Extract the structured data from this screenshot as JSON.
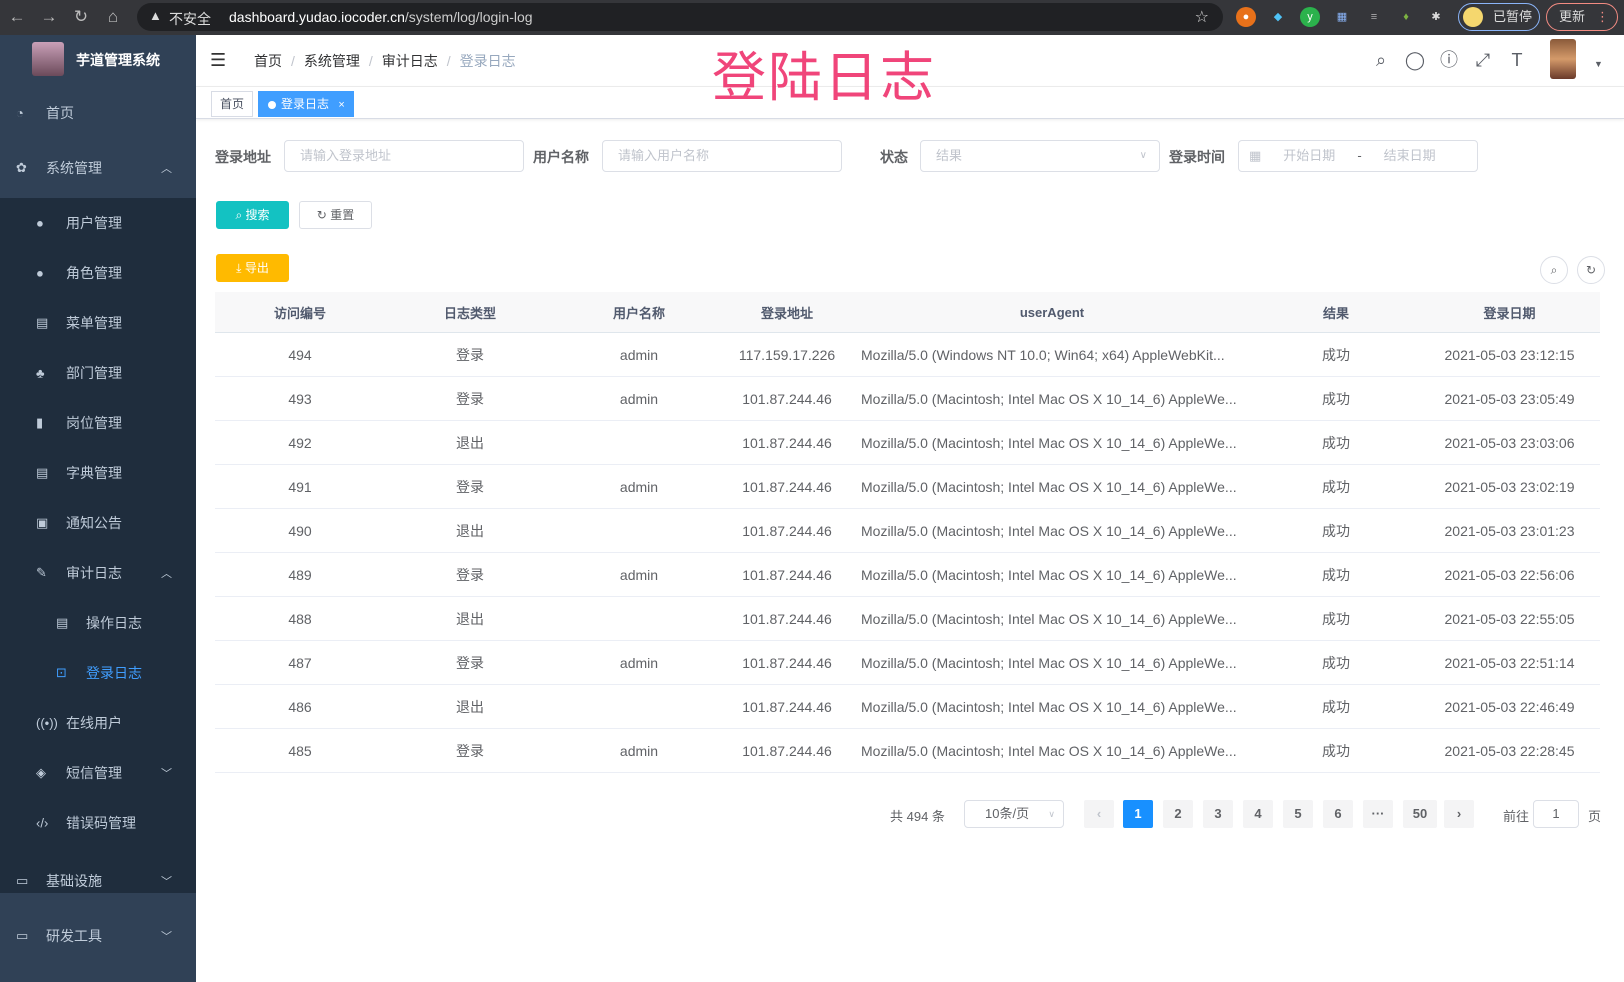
{
  "browser": {
    "security": "不安全",
    "url_host": "dashboard.yudao.iocoder.cn",
    "url_path": "/system/log/login-log",
    "paused_label": "已暂停",
    "update_label": "更新"
  },
  "overlay_title": "登陆日志",
  "sidebar": {
    "title": "芋道管理系统",
    "items": [
      {
        "label": "首页",
        "icon": "dashboard-icon",
        "glyph": "◔",
        "level": 0
      },
      {
        "label": "系统管理",
        "icon": "gear-icon",
        "glyph": "✿",
        "level": 0,
        "arrow": "up"
      },
      {
        "label": "用户管理",
        "icon": "user-icon",
        "glyph": "●",
        "level": 1
      },
      {
        "label": "角色管理",
        "icon": "peoples-icon",
        "glyph": "●",
        "level": 1
      },
      {
        "label": "菜单管理",
        "icon": "tree-table-icon",
        "glyph": "▤",
        "level": 1
      },
      {
        "label": "部门管理",
        "icon": "tree-icon",
        "glyph": "♣",
        "level": 1
      },
      {
        "label": "岗位管理",
        "icon": "post-icon",
        "glyph": "▮",
        "level": 1
      },
      {
        "label": "字典管理",
        "icon": "dict-icon",
        "glyph": "▤",
        "level": 1
      },
      {
        "label": "通知公告",
        "icon": "message-icon",
        "glyph": "▣",
        "level": 1
      },
      {
        "label": "审计日志",
        "icon": "log-icon",
        "glyph": "✎",
        "level": 1,
        "arrow": "up"
      },
      {
        "label": "操作日志",
        "icon": "form-icon",
        "glyph": "▤",
        "level": 2
      },
      {
        "label": "登录日志",
        "icon": "logininfor-icon",
        "glyph": "⊡",
        "level": 2,
        "active": true
      },
      {
        "label": "在线用户",
        "icon": "online-icon",
        "glyph": "((•))",
        "level": 1
      },
      {
        "label": "短信管理",
        "icon": "shield-icon",
        "glyph": "◈",
        "level": 1,
        "arrow": "down"
      },
      {
        "label": "错误码管理",
        "icon": "code-icon",
        "glyph": "‹/›",
        "level": 1
      },
      {
        "label": "基础设施",
        "icon": "monitor-icon",
        "glyph": "▭",
        "level": 0,
        "arrow": "down"
      },
      {
        "label": "研发工具",
        "icon": "tool-icon",
        "glyph": "▭",
        "level": 0,
        "arrow": "down"
      }
    ]
  },
  "breadcrumb": [
    "首页",
    "系统管理",
    "审计日志",
    "登录日志"
  ],
  "tags": [
    {
      "label": "首页"
    },
    {
      "label": "登录日志",
      "close": "×"
    }
  ],
  "filters": {
    "address": {
      "label": "登录地址",
      "placeholder": "请输入登录地址"
    },
    "username": {
      "label": "用户名称",
      "placeholder": "请输入用户名称"
    },
    "status": {
      "label": "状态",
      "placeholder": "结果"
    },
    "time": {
      "label": "登录时间",
      "start": "开始日期",
      "sep": "-",
      "end": "结束日期"
    }
  },
  "buttons": {
    "search": "搜索",
    "reset": "重置",
    "export": "导出"
  },
  "accent": {
    "primary": "#1890ff",
    "search": "#13c2c2",
    "export": "#ffba00"
  },
  "table": {
    "headers": [
      "访问编号",
      "日志类型",
      "用户名称",
      "登录地址",
      "userAgent",
      "结果",
      "登录日期"
    ],
    "rows": [
      [
        "494",
        "登录",
        "admin",
        "117.159.17.226",
        "Mozilla/5.0 (Windows NT 10.0; Win64; x64) AppleWebKit...",
        "成功",
        "2021-05-03 23:12:15"
      ],
      [
        "493",
        "登录",
        "admin",
        "101.87.244.46",
        "Mozilla/5.0 (Macintosh; Intel Mac OS X 10_14_6) AppleWe...",
        "成功",
        "2021-05-03 23:05:49"
      ],
      [
        "492",
        "退出",
        "",
        "101.87.244.46",
        "Mozilla/5.0 (Macintosh; Intel Mac OS X 10_14_6) AppleWe...",
        "成功",
        "2021-05-03 23:03:06"
      ],
      [
        "491",
        "登录",
        "admin",
        "101.87.244.46",
        "Mozilla/5.0 (Macintosh; Intel Mac OS X 10_14_6) AppleWe...",
        "成功",
        "2021-05-03 23:02:19"
      ],
      [
        "490",
        "退出",
        "",
        "101.87.244.46",
        "Mozilla/5.0 (Macintosh; Intel Mac OS X 10_14_6) AppleWe...",
        "成功",
        "2021-05-03 23:01:23"
      ],
      [
        "489",
        "登录",
        "admin",
        "101.87.244.46",
        "Mozilla/5.0 (Macintosh; Intel Mac OS X 10_14_6) AppleWe...",
        "成功",
        "2021-05-03 22:56:06"
      ],
      [
        "488",
        "退出",
        "",
        "101.87.244.46",
        "Mozilla/5.0 (Macintosh; Intel Mac OS X 10_14_6) AppleWe...",
        "成功",
        "2021-05-03 22:55:05"
      ],
      [
        "487",
        "登录",
        "admin",
        "101.87.244.46",
        "Mozilla/5.0 (Macintosh; Intel Mac OS X 10_14_6) AppleWe...",
        "成功",
        "2021-05-03 22:51:14"
      ],
      [
        "486",
        "退出",
        "",
        "101.87.244.46",
        "Mozilla/5.0 (Macintosh; Intel Mac OS X 10_14_6) AppleWe...",
        "成功",
        "2021-05-03 22:46:49"
      ],
      [
        "485",
        "登录",
        "admin",
        "101.87.244.46",
        "Mozilla/5.0 (Macintosh; Intel Mac OS X 10_14_6) AppleWe...",
        "成功",
        "2021-05-03 22:28:45"
      ]
    ]
  },
  "pagination": {
    "total": "共 494 条",
    "page_size": "10条/页",
    "pages": [
      "1",
      "2",
      "3",
      "4",
      "5",
      "6",
      "···",
      "50"
    ],
    "current": "1",
    "goto_label": "前往",
    "goto_value": "1",
    "goto_suffix": "页"
  }
}
